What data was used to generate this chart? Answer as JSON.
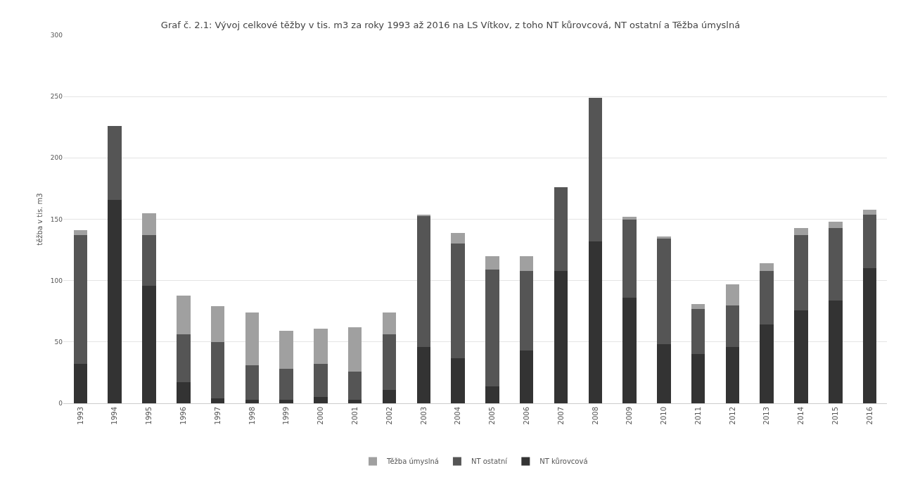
{
  "chart_data": {
    "type": "bar",
    "title": "Graf č. 2.1: Vývoj celkové těžby v tis. m3 za roky 1993 až 2016 na LS Vítkov, z toho NT kůrovcová, NT ostatní a Těžba úmyslná",
    "ylabel": "těžba v tis. m3",
    "categories": [
      "1993",
      "1994",
      "1995",
      "1996",
      "1997",
      "1998",
      "1999",
      "2000",
      "2001",
      "2002",
      "2003",
      "2004",
      "2005",
      "2006",
      "2007",
      "2008",
      "2009",
      "2010",
      "2011",
      "2012",
      "2013",
      "2014",
      "2015",
      "2016"
    ],
    "stacked": true,
    "series": [
      {
        "name": "NT kůrovcová",
        "color": "#333333",
        "values": [
          32,
          166,
          96,
          17,
          4,
          3,
          3,
          5,
          3,
          11,
          46,
          37,
          14,
          43,
          108,
          132,
          86,
          48,
          40,
          46,
          64,
          76,
          84,
          110
        ]
      },
      {
        "name": "NT ostatní",
        "color": "#555555",
        "values": [
          105,
          60,
          41,
          39,
          46,
          28,
          25,
          27,
          23,
          45,
          107,
          93,
          95,
          65,
          68,
          117,
          64,
          86,
          37,
          34,
          44,
          61,
          59,
          44
        ]
      },
      {
        "name": "Těžba úmyslná",
        "color": "#a0a0a0",
        "values": [
          4,
          0,
          18,
          32,
          29,
          43,
          31,
          29,
          36,
          18,
          1,
          9,
          11,
          12,
          0,
          0,
          2,
          2,
          4,
          17,
          6,
          6,
          5,
          4
        ]
      }
    ],
    "ylim": [
      0,
      300
    ],
    "yticks": [
      0,
      50,
      100,
      150,
      200,
      250,
      300
    ],
    "grid": "y",
    "legend": "bottom"
  }
}
